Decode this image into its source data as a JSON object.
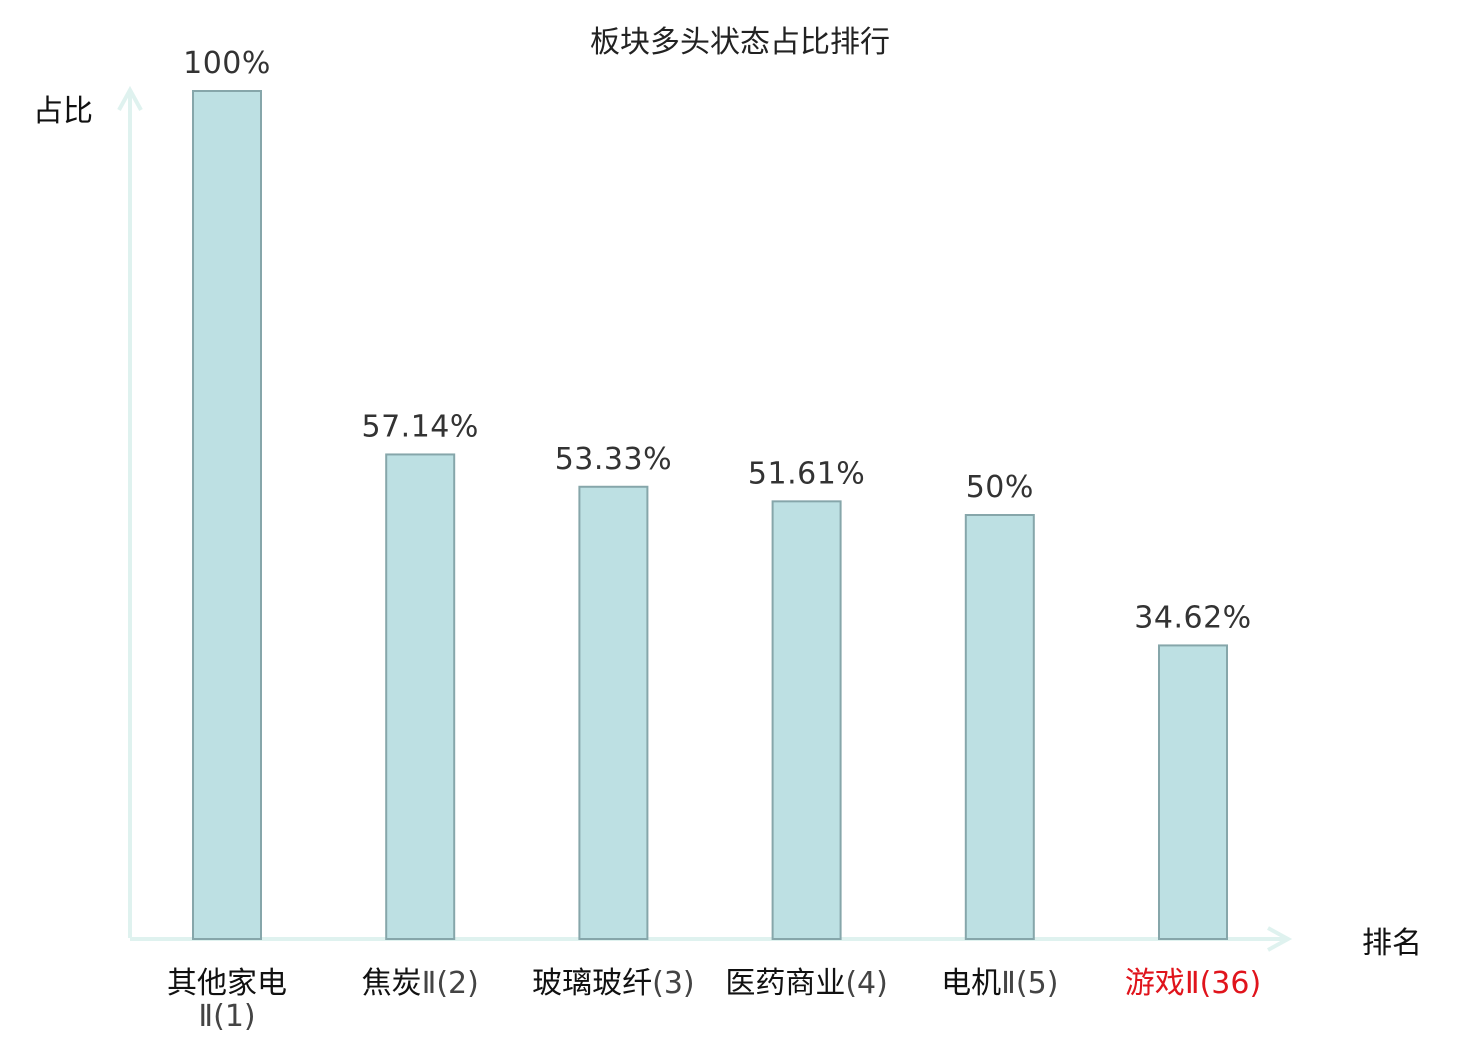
{
  "chart_data": {
    "type": "bar",
    "title": "板块多头状态占比排行",
    "xlabel": "排名",
    "ylabel": "占比",
    "ylim": [
      0,
      100
    ],
    "grid": false,
    "categories": [
      {
        "name": "其他家电",
        "rank": "Ⅱ(1)",
        "highlight": false
      },
      {
        "name": "焦炭",
        "rank": "Ⅱ(2)",
        "highlight": false
      },
      {
        "name": "玻璃玻纤",
        "rank": "(3)",
        "highlight": false
      },
      {
        "name": "医药商业",
        "rank": "(4)",
        "highlight": false
      },
      {
        "name": "电机",
        "rank": "Ⅱ(5)",
        "highlight": false
      },
      {
        "name": "游戏",
        "rank": "Ⅱ(36)",
        "highlight": true
      }
    ],
    "values": [
      100,
      57.14,
      53.33,
      51.61,
      50,
      34.62
    ],
    "value_labels": [
      "100%",
      "57.14%",
      "53.33%",
      "51.61%",
      "50%",
      "34.62%"
    ]
  },
  "colors": {
    "bar_fill": "#bde0e3",
    "bar_stroke": "#86a6aa",
    "axis": "#dff2ef",
    "label_text": "#111111",
    "rank_text": "#444444",
    "highlight_text": "#e0141c",
    "value_text": "#333333"
  }
}
